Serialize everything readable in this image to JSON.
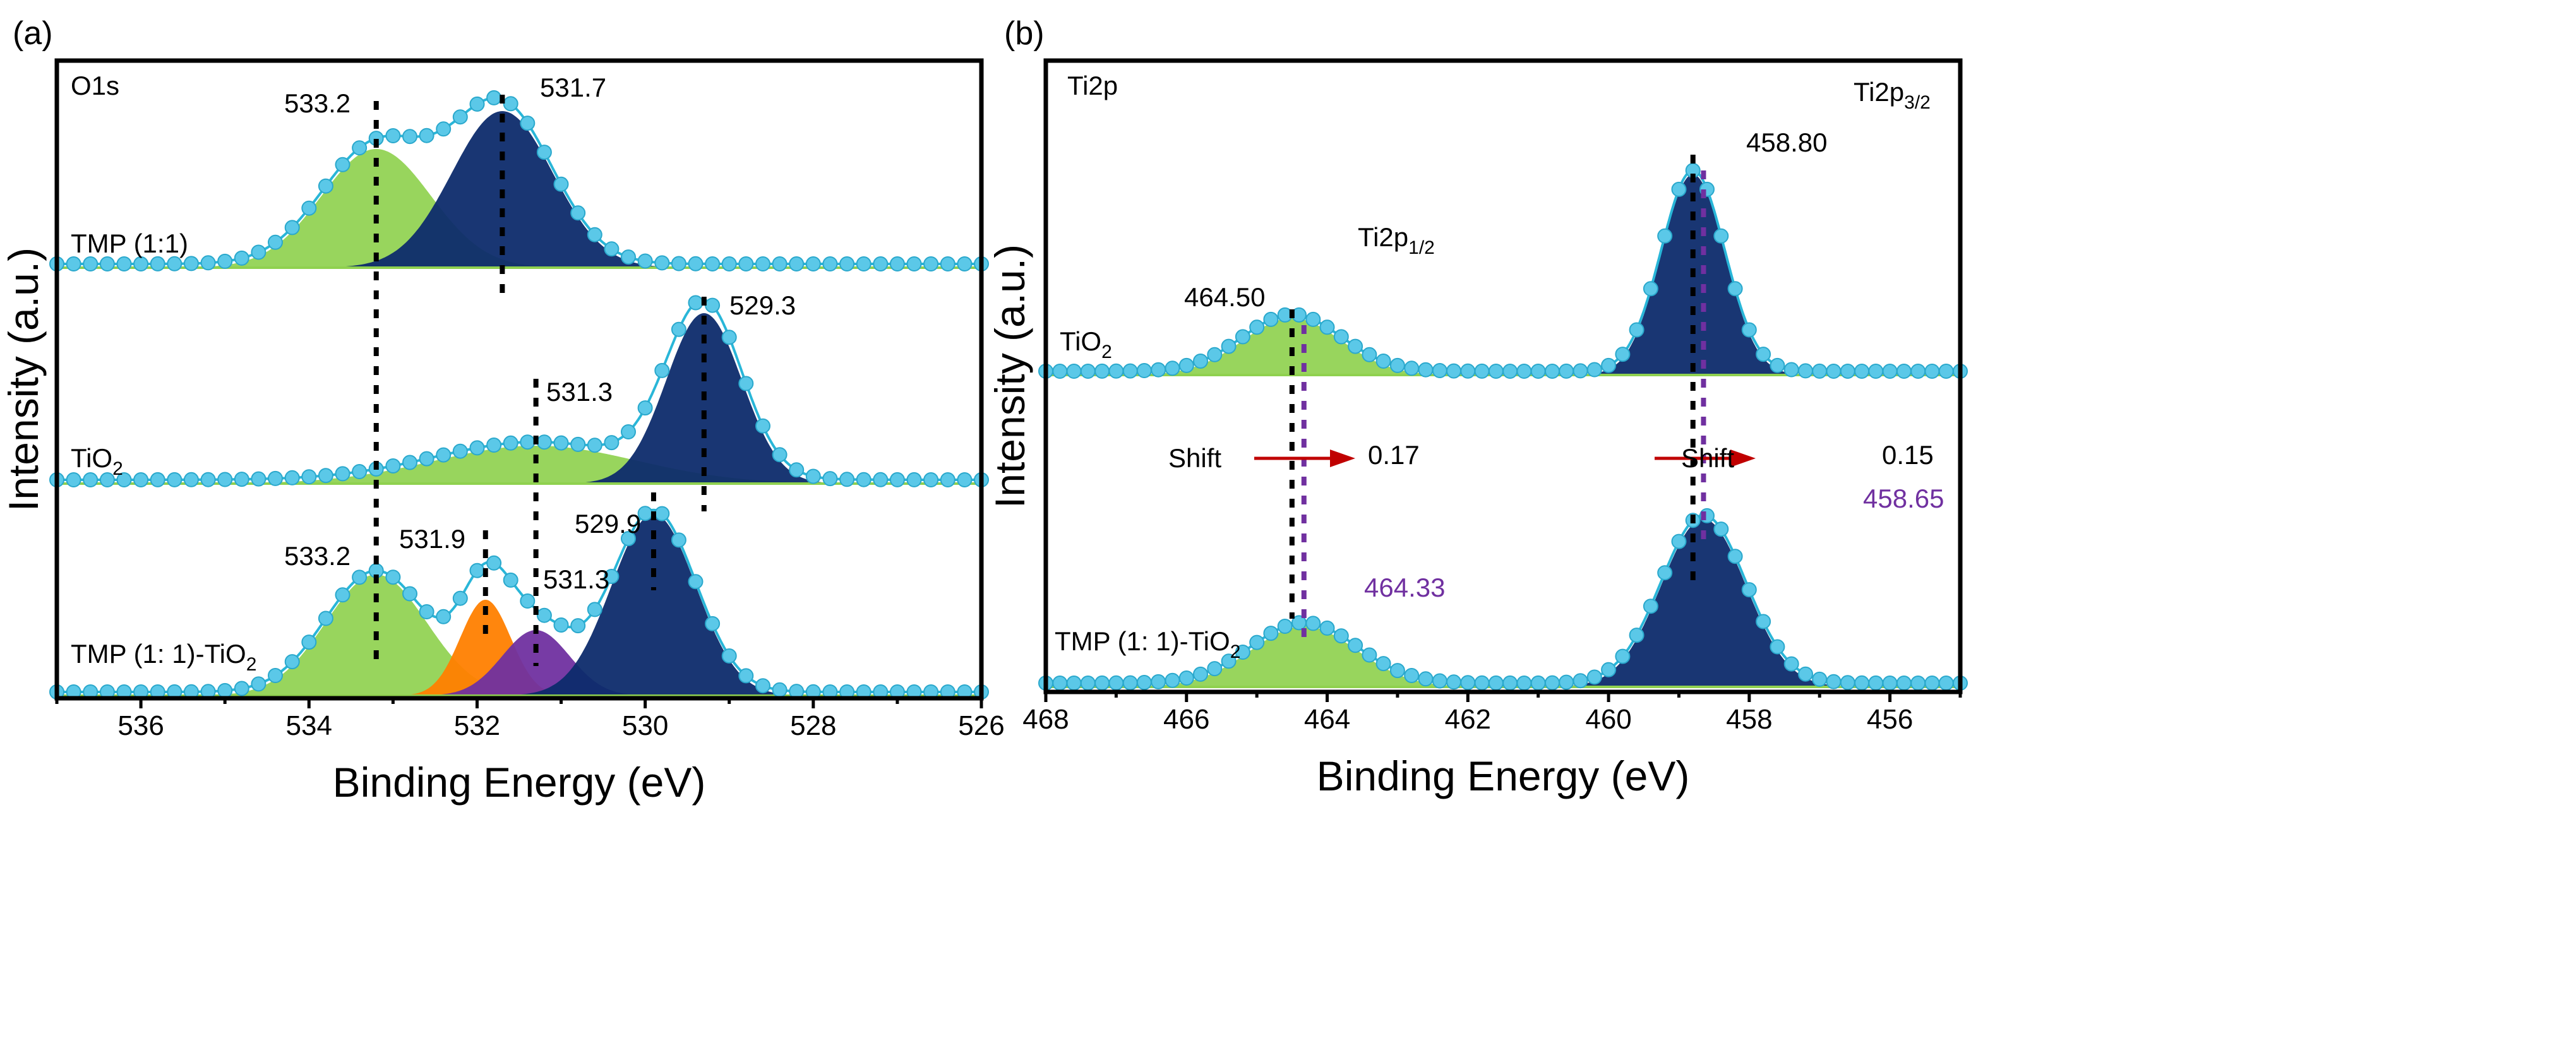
{
  "chart_data": [
    {
      "type": "area",
      "panel_label": "(a)",
      "title": "O1s",
      "xlabel": "Binding Energy (eV)",
      "ylabel": "Intensity (a.u.)",
      "xlim": [
        537,
        526
      ],
      "xticks": [
        536,
        534,
        532,
        530,
        528,
        526
      ],
      "grid": false,
      "spectra": [
        {
          "name": "TMP (1:1)",
          "sub": "",
          "peaks": [
            {
              "center": 533.2,
              "height": 94,
              "sigma": 0.65,
              "color": "#8fd14f",
              "label": "533.2"
            },
            {
              "center": 531.7,
              "height": 124,
              "sigma": 0.6,
              "color": "#0d2b6b",
              "label": "531.7"
            }
          ]
        },
        {
          "name": "TiO",
          "sub": "2",
          "peaks": [
            {
              "center": 531.3,
              "height": 30,
              "sigma": 1.2,
              "color": "#8fd14f",
              "label": "531.3"
            },
            {
              "center": 529.3,
              "height": 135,
              "sigma": 0.45,
              "color": "#0d2b6b",
              "label": "529.3"
            }
          ]
        },
        {
          "name": "TMP (1: 1)-TiO",
          "sub": "2",
          "peaks": [
            {
              "center": 533.2,
              "height": 96,
              "sigma": 0.6,
              "color": "#8fd14f",
              "label": "533.2"
            },
            {
              "center": 531.9,
              "height": 76,
              "sigma": 0.3,
              "color": "#ff8000",
              "label": "531.9"
            },
            {
              "center": 531.3,
              "height": 52,
              "sigma": 0.4,
              "color": "#7030a0",
              "label": "531.3"
            },
            {
              "center": 529.9,
              "height": 144,
              "sigma": 0.5,
              "color": "#0d2b6b",
              "label": "529.9"
            }
          ]
        }
      ]
    },
    {
      "type": "area",
      "panel_label": "(b)",
      "title": "Ti2p",
      "xlabel": "Binding Energy (eV)",
      "ylabel": "Intensity (a.u.)",
      "xlim": [
        468,
        455
      ],
      "xticks": [
        468,
        466,
        464,
        462,
        460,
        458,
        456
      ],
      "grid": false,
      "peak_names": [
        {
          "text": "Ti2p",
          "sub": "1/2"
        },
        {
          "text": "Ti2p",
          "sub": "3/2"
        }
      ],
      "spectra": [
        {
          "name": "TiO",
          "sub": "2",
          "peaks": [
            {
              "center": 464.5,
              "height": 45,
              "sigma": 0.7,
              "color": "#8fd14f",
              "label": "464.50"
            },
            {
              "center": 458.8,
              "height": 159,
              "sigma": 0.45,
              "color": "#0d2b6b",
              "label": "458.80"
            }
          ]
        },
        {
          "name": "TMP (1: 1)-TiO",
          "sub": "2",
          "peaks": [
            {
              "center": 464.33,
              "height": 48,
              "sigma": 0.75,
              "color": "#8fd14f",
              "label": "464.33"
            },
            {
              "center": 458.65,
              "height": 133,
              "sigma": 0.6,
              "color": "#0d2b6b",
              "label": "458.65"
            }
          ]
        }
      ],
      "shifts": [
        {
          "label": "Shift",
          "value": "0.17"
        },
        {
          "label": "Shift",
          "value": "0.15"
        }
      ]
    }
  ],
  "colors": {
    "fit_line": "#29b6d8",
    "dots": "#5bc8e8",
    "arrow": "#c00000",
    "shifted_label": "#7030a0"
  }
}
